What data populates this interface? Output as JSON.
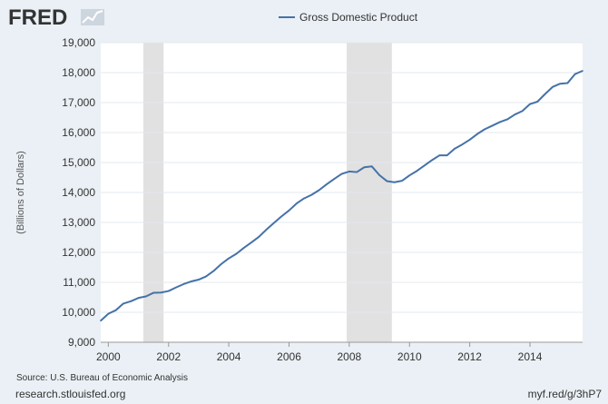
{
  "logo": {
    "text": "FRED",
    "icon": "trend-line-icon"
  },
  "source": "Source: U.S. Bureau of Economic Analysis",
  "site_url": "research.stlouisfed.org",
  "short_url": "myf.red/g/3hP7",
  "colors": {
    "line": "#4572a7",
    "recession": "#e1e1e1",
    "plot_bg": "#ffffff",
    "page_bg": "#eaf0f5",
    "grid": "#e3e8ee",
    "logo": "#333333"
  },
  "chart_data": {
    "type": "line",
    "title": "",
    "xlabel": "",
    "ylabel": "(Billions of Dollars)",
    "legend": {
      "position": "top-center"
    },
    "grid": true,
    "x_ticks": [
      "2000",
      "2002",
      "2004",
      "2006",
      "2008",
      "2010",
      "2012",
      "2014"
    ],
    "y_ticks": [
      "9,000",
      "10,000",
      "11,000",
      "12,000",
      "13,000",
      "14,000",
      "15,000",
      "16,000",
      "17,000",
      "18,000",
      "19,000"
    ],
    "xlim": [
      "1999-10-01",
      "2015-10-01"
    ],
    "ylim": [
      9000,
      19000
    ],
    "recessions": [
      {
        "start": "2001-03-01",
        "end": "2001-11-01"
      },
      {
        "start": "2007-12-01",
        "end": "2009-06-01"
      }
    ],
    "x": [
      "1999-10-01",
      "2000-01-01",
      "2000-04-01",
      "2000-07-01",
      "2000-10-01",
      "2001-01-01",
      "2001-04-01",
      "2001-07-01",
      "2001-10-01",
      "2002-01-01",
      "2002-04-01",
      "2002-07-01",
      "2002-10-01",
      "2003-01-01",
      "2003-04-01",
      "2003-07-01",
      "2003-10-01",
      "2004-01-01",
      "2004-04-01",
      "2004-07-01",
      "2004-10-01",
      "2005-01-01",
      "2005-04-01",
      "2005-07-01",
      "2005-10-01",
      "2006-01-01",
      "2006-04-01",
      "2006-07-01",
      "2006-10-01",
      "2007-01-01",
      "2007-04-01",
      "2007-07-01",
      "2007-10-01",
      "2008-01-01",
      "2008-04-01",
      "2008-07-01",
      "2008-10-01",
      "2009-01-01",
      "2009-04-01",
      "2009-07-01",
      "2009-10-01",
      "2010-01-01",
      "2010-04-01",
      "2010-07-01",
      "2010-10-01",
      "2011-01-01",
      "2011-04-01",
      "2011-07-01",
      "2011-10-01",
      "2012-01-01",
      "2012-04-01",
      "2012-07-01",
      "2012-10-01",
      "2013-01-01",
      "2013-04-01",
      "2013-07-01",
      "2013-10-01",
      "2014-01-01",
      "2014-04-01",
      "2014-07-01",
      "2014-10-01",
      "2015-01-01",
      "2015-04-01",
      "2015-07-01",
      "2015-10-01"
    ],
    "series": [
      {
        "name": "Gross Domestic Product",
        "values": [
          9720,
          9950,
          10070,
          10290,
          10370,
          10480,
          10530,
          10650,
          10660,
          10710,
          10830,
          10940,
          11030,
          11090,
          11200,
          11380,
          11610,
          11800,
          11950,
          12150,
          12330,
          12520,
          12760,
          12980,
          13200,
          13400,
          13630,
          13800,
          13920,
          14080,
          14270,
          14450,
          14620,
          14700,
          14680,
          14840,
          14870,
          14580,
          14380,
          14340,
          14390,
          14570,
          14720,
          14900,
          15080,
          15240,
          15240,
          15460,
          15600,
          15760,
          15950,
          16110,
          16230,
          16350,
          16440,
          16600,
          16720,
          16950,
          17030,
          17280,
          17520,
          17630,
          17650,
          17950,
          18060
        ]
      }
    ]
  }
}
